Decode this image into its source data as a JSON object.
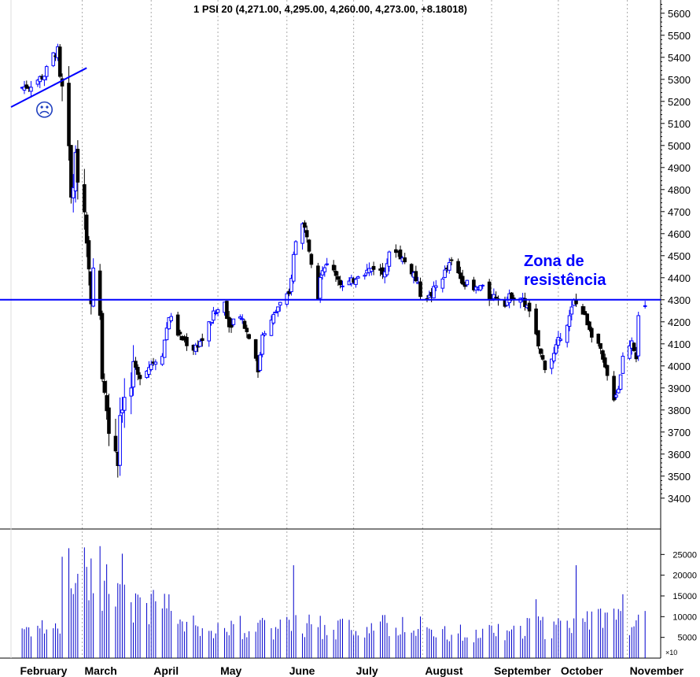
{
  "chart_data": [
    {
      "type": "candlestick",
      "title": "1 PSI 20 (4,271.00, 4,295.00, 4,260.00, 4,273.00, +8.18018)",
      "x_axis_labels": [
        "February",
        "March",
        "April",
        "May",
        "June",
        "July",
        "August",
        "September",
        "October",
        "November"
      ],
      "price_ticks": [
        3400,
        3500,
        3600,
        3700,
        3800,
        3900,
        4000,
        4100,
        4200,
        4300,
        4400,
        4500,
        4600,
        4700,
        4800,
        4900,
        5000,
        5100,
        5200,
        5300,
        5400,
        5500,
        5600
      ],
      "ylim": [
        3260,
        5660
      ],
      "resistance_level": 4300,
      "annotation": [
        "Zona de",
        "resistência"
      ],
      "anchors": [
        [
          "02-01",
          5260
        ],
        [
          "02-06",
          5270
        ],
        [
          "02-13",
          5320
        ],
        [
          "02-17",
          5410
        ],
        [
          "02-19",
          5430
        ],
        [
          "02-20",
          5300
        ],
        [
          "02-21",
          5260
        ],
        [
          "02-22",
          5120
        ],
        [
          "02-24",
          4980
        ],
        [
          "02-25",
          4760
        ],
        [
          "02-26",
          4820
        ],
        [
          "02-27",
          4950
        ],
        [
          "02-28",
          4850
        ],
        [
          "03-02",
          4700
        ],
        [
          "03-05",
          4300
        ],
        [
          "03-06",
          4430
        ],
        [
          "03-09",
          4230
        ],
        [
          "03-10",
          3950
        ],
        [
          "03-12",
          3800
        ],
        [
          "03-13",
          3700
        ],
        [
          "03-16",
          3620
        ],
        [
          "03-17",
          3560
        ],
        [
          "03-18",
          3780
        ],
        [
          "03-20",
          3850
        ],
        [
          "03-23",
          3900
        ],
        [
          "03-24",
          4000
        ],
        [
          "03-26",
          3950
        ],
        [
          "03-31",
          4000
        ],
        [
          "04-06",
          4060
        ],
        [
          "04-09",
          4230
        ],
        [
          "04-14",
          4130
        ],
        [
          "04-20",
          4080
        ],
        [
          "04-24",
          4120
        ],
        [
          "04-29",
          4230
        ],
        [
          "05-04",
          4290
        ],
        [
          "05-06",
          4180
        ],
        [
          "05-08",
          4210
        ],
        [
          "05-11",
          4240
        ],
        [
          "05-13",
          4180
        ],
        [
          "05-15",
          4130
        ],
        [
          "05-18",
          4050
        ],
        [
          "05-19",
          3960
        ],
        [
          "05-21",
          4150
        ],
        [
          "05-25",
          4200
        ],
        [
          "05-28",
          4270
        ],
        [
          "06-02",
          4320
        ],
        [
          "06-04",
          4500
        ],
        [
          "06-05",
          4580
        ],
        [
          "06-08",
          4640
        ],
        [
          "06-10",
          4600
        ],
        [
          "06-12",
          4480
        ],
        [
          "06-15",
          4320
        ],
        [
          "06-16",
          4420
        ],
        [
          "06-18",
          4460
        ],
        [
          "06-23",
          4420
        ],
        [
          "06-26",
          4360
        ],
        [
          "06-30",
          4380
        ],
        [
          "07-03",
          4420
        ],
        [
          "07-07",
          4430
        ],
        [
          "07-10",
          4450
        ],
        [
          "07-14",
          4420
        ],
        [
          "07-17",
          4500
        ],
        [
          "07-20",
          4530
        ],
        [
          "07-22",
          4500
        ],
        [
          "07-24",
          4470
        ],
        [
          "07-28",
          4420
        ],
        [
          "07-31",
          4330
        ],
        [
          "08-04",
          4310
        ],
        [
          "08-07",
          4360
        ],
        [
          "08-12",
          4440
        ],
        [
          "08-14",
          4470
        ],
        [
          "08-18",
          4400
        ],
        [
          "08-20",
          4380
        ],
        [
          "08-24",
          4340
        ],
        [
          "08-27",
          4360
        ],
        [
          "08-31",
          4310
        ],
        [
          "09-03",
          4320
        ],
        [
          "09-07",
          4290
        ],
        [
          "09-10",
          4320
        ],
        [
          "09-14",
          4310
        ],
        [
          "09-16",
          4280
        ],
        [
          "09-18",
          4250
        ],
        [
          "09-21",
          4130
        ],
        [
          "09-23",
          4050
        ],
        [
          "09-25",
          4000
        ],
        [
          "09-29",
          4050
        ],
        [
          "10-02",
          4140
        ],
        [
          "10-06",
          4220
        ],
        [
          "10-08",
          4290
        ],
        [
          "10-09",
          4280
        ],
        [
          "10-12",
          4240
        ],
        [
          "10-14",
          4200
        ],
        [
          "10-16",
          4150
        ],
        [
          "10-19",
          4100
        ],
        [
          "10-22",
          3980
        ],
        [
          "10-26",
          3860
        ],
        [
          "10-28",
          3900
        ],
        [
          "10-30",
          4040
        ],
        [
          "11-03",
          4120
        ],
        [
          "11-05",
          4050
        ],
        [
          "11-06",
          4240
        ],
        [
          "11-09",
          4273
        ]
      ],
      "volume_axis_ticks": [
        5000,
        10000,
        15000,
        20000,
        25000
      ],
      "volume_multiplier_label": "×10",
      "volume_spikes": [
        [
          "02-24",
          26500
        ],
        [
          "03-02",
          26700
        ],
        [
          "03-09",
          27000
        ],
        [
          "06-04",
          22400
        ],
        [
          "09-21",
          14200
        ],
        [
          "10-09",
          22400
        ],
        [
          "10-30",
          15400
        ]
      ],
      "colors": {
        "up": "#0000ff",
        "down": "#000000",
        "resistance": "#0000ff",
        "trendline": "#0000ff",
        "grid": "#aaaaaa"
      },
      "trendline": {
        "from": [
          "02-01",
          5190
        ],
        "to": [
          "02-24",
          5310
        ]
      },
      "sad_face": "☹"
    }
  ]
}
